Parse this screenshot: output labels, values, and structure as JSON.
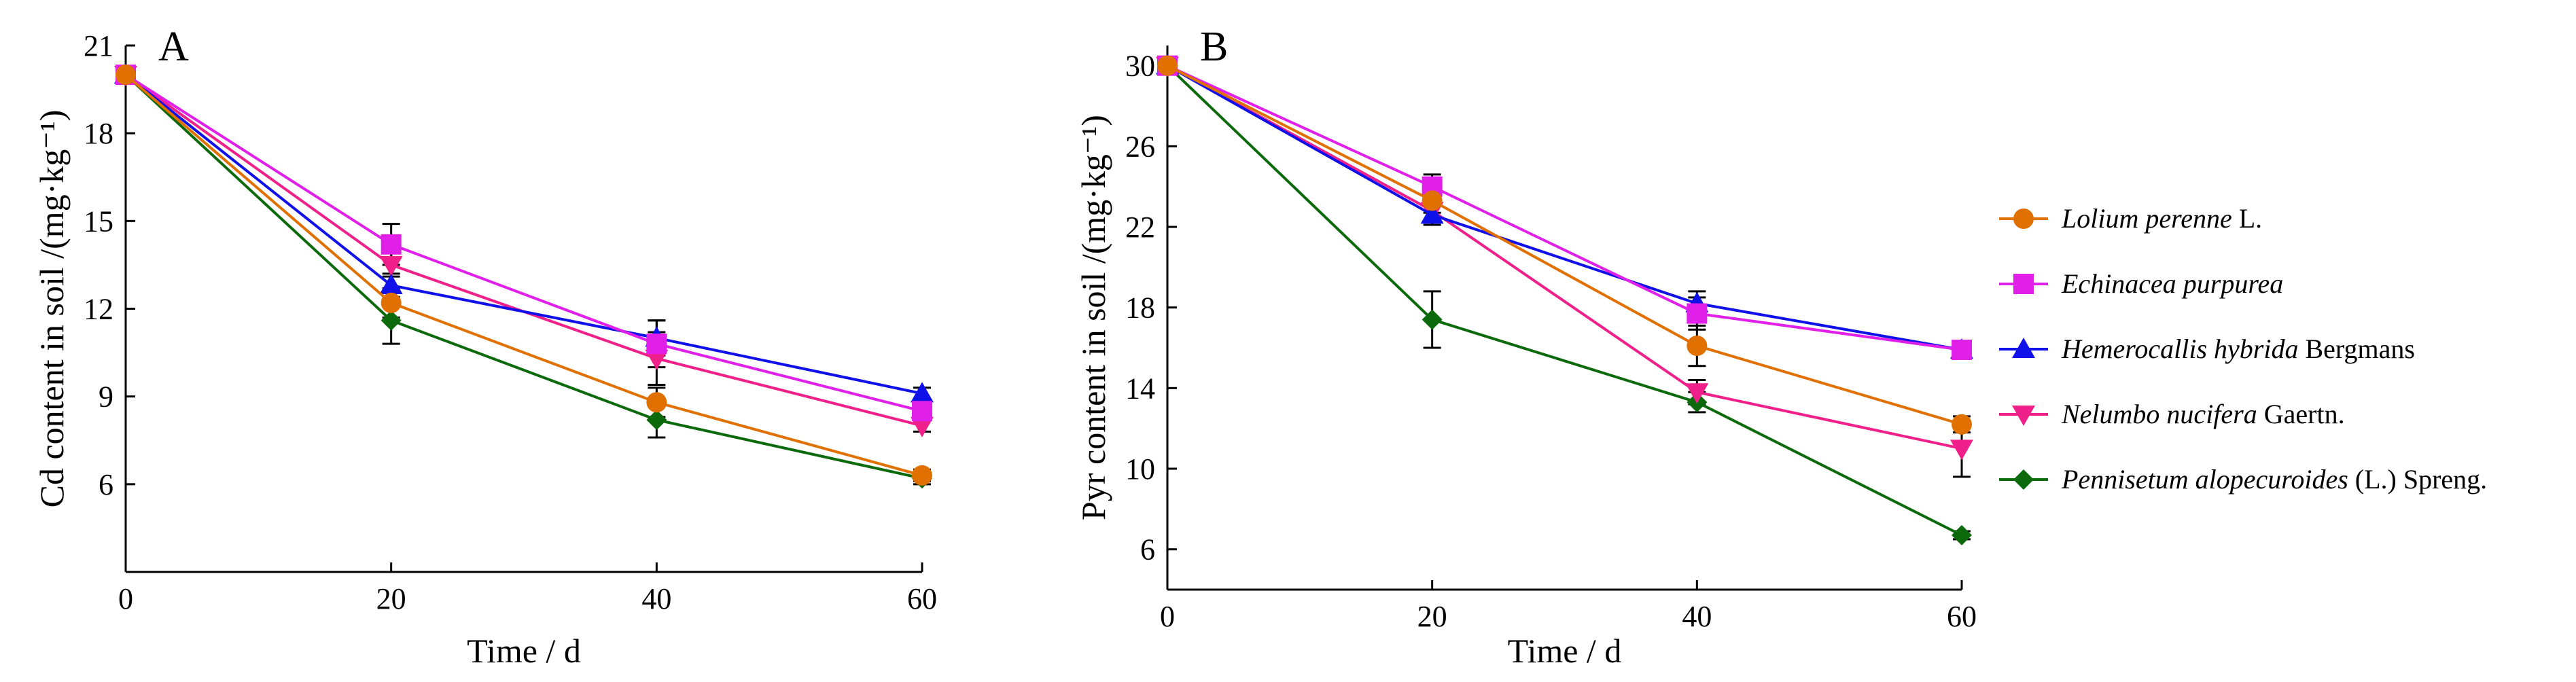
{
  "chart_data": [
    {
      "type": "line",
      "panel_label": "A",
      "xlabel": "Time /  d",
      "ylabel": "Cd content in soil /(mg·kg⁻¹)",
      "x": [
        0,
        20,
        40,
        60
      ],
      "xlim": [
        0,
        60
      ],
      "ylim": [
        3,
        21
      ],
      "xticks": [
        0,
        20,
        40,
        60
      ],
      "yticks": [
        6,
        9,
        12,
        15,
        18,
        21
      ],
      "xtick_labels": [
        "0",
        "20",
        "40",
        "60"
      ],
      "ytick_labels": [
        "6",
        "9",
        "12",
        "15",
        "18",
        "21"
      ],
      "series": [
        {
          "name": "Lolium perenne L.",
          "values": [
            20,
            12.2,
            8.8,
            6.3
          ],
          "errors": [
            0,
            0.5,
            0.5,
            0.2
          ]
        },
        {
          "name": "Echinacea purpurea",
          "values": [
            20,
            14.2,
            10.8,
            8.5
          ],
          "errors": [
            0,
            0.7,
            0.8,
            0.2
          ]
        },
        {
          "name": "Hemerocallis hybrida Bergmans",
          "values": [
            20,
            12.8,
            11.0,
            9.1
          ],
          "errors": [
            0,
            0.4,
            0.6,
            0.2
          ]
        },
        {
          "name": "Nelumbo nucifera Gaertn.",
          "values": [
            20,
            13.5,
            10.3,
            8.0
          ],
          "errors": [
            0,
            0.4,
            0.9,
            0.2
          ]
        },
        {
          "name": "Pennisetum alopecuroides (L.) Spreng.",
          "values": [
            20,
            11.6,
            8.2,
            6.2
          ],
          "errors": [
            0,
            0.8,
            0.6,
            0.2
          ]
        }
      ]
    },
    {
      "type": "line",
      "panel_label": "B",
      "xlabel": "Time /  d",
      "ylabel": "Pyr content in soil /(mg·kg⁻¹)",
      "x": [
        0,
        20,
        40,
        60
      ],
      "xlim": [
        0,
        60
      ],
      "ylim": [
        4,
        31
      ],
      "xticks": [
        0,
        20,
        40,
        60
      ],
      "yticks": [
        6,
        10,
        14,
        18,
        22,
        26,
        30
      ],
      "xtick_labels": [
        "0",
        "20",
        "40",
        "60"
      ],
      "ytick_labels": [
        "6",
        "10",
        "14",
        "18",
        "22",
        "26",
        "30"
      ],
      "series": [
        {
          "name": "Lolium perenne L.",
          "values": [
            30,
            23.3,
            16.1,
            12.2
          ],
          "errors": [
            0,
            0.6,
            1.0,
            0.4
          ]
        },
        {
          "name": "Echinacea purpurea",
          "values": [
            30,
            24.0,
            17.7,
            15.9
          ],
          "errors": [
            0,
            0.6,
            0.8,
            0.4
          ]
        },
        {
          "name": "Hemerocallis hybrida Bergmans",
          "values": [
            30,
            22.6,
            18.2,
            15.9
          ],
          "errors": [
            0,
            0.5,
            0.6,
            0.4
          ]
        },
        {
          "name": "Nelumbo nucifera Gaertn.",
          "values": [
            30,
            22.8,
            13.8,
            11.0
          ],
          "errors": [
            0,
            0.5,
            0.6,
            1.4
          ]
        },
        {
          "name": "Pennisetum alopecuroides (L.) Spreng.",
          "values": [
            30,
            17.4,
            13.3,
            6.7
          ],
          "errors": [
            0,
            1.4,
            0.5,
            0.2
          ]
        }
      ]
    }
  ],
  "legend": {
    "placement": "right",
    "items": [
      {
        "italic": "Lolium perenne",
        "suffix": " L.",
        "color": "#E07000",
        "marker": "circle"
      },
      {
        "italic": "Echinacea purpurea",
        "suffix": "",
        "color": "#E020E8",
        "marker": "square"
      },
      {
        "italic": "Hemerocallis hybrida",
        "suffix": " Bergmans",
        "color": "#1010E8",
        "marker": "triangle-up"
      },
      {
        "italic": "Nelumbo nucifera",
        "suffix": " Gaertn.",
        "color": "#F0208A",
        "marker": "triangle-down"
      },
      {
        "italic": "Pennisetum alopecuroides",
        "suffix": " (L.) Spreng.",
        "color": "#0C6A0C",
        "marker": "diamond"
      }
    ]
  }
}
